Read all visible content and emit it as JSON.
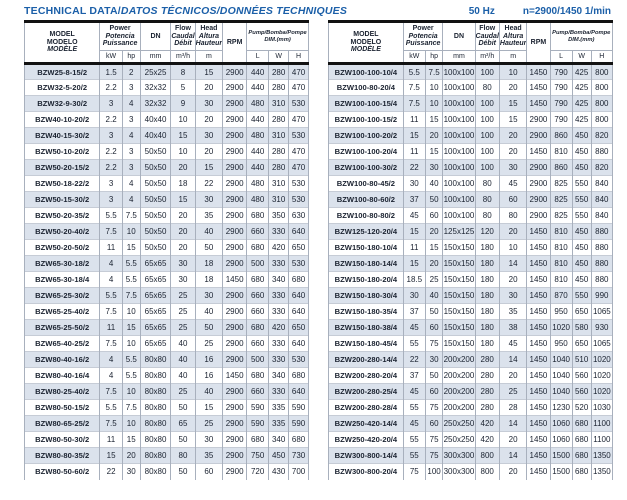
{
  "title": {
    "main": "TECHNICAL DATA/",
    "sub": "DATOS TÉCNICOS/DONNÉES TECHNIQUES",
    "frequency": "50 Hz",
    "speed": "n=2900/1450 1/min"
  },
  "colors": {
    "accent_blue": "#1b5fa8",
    "row_alt": "#dbe2ec",
    "heavy_rule": "#121212",
    "grid_line": "#a8b0bd"
  },
  "header": {
    "model": [
      "MODEL",
      "MODELO",
      "MODÈLE"
    ],
    "power": [
      "Power",
      "Potencia",
      "Puissance"
    ],
    "dn": "DN",
    "flow": [
      "Flow",
      "Caudal",
      "Débit"
    ],
    "head": [
      "Head",
      "Altura",
      "Hauteur"
    ],
    "rpm": "RPM",
    "dim": [
      "Pump/Bomba/Pompe",
      "DIM.(mm)"
    ],
    "units": {
      "kw": "kW",
      "hp": "hp",
      "mm": "mm",
      "m3h": "m³/h",
      "m": "m",
      "l": "L",
      "w": "W",
      "h": "H"
    }
  },
  "tables": [
    {
      "rows": [
        [
          "BZW25-8-15/2",
          "1.5",
          "2",
          "25x25",
          "8",
          "15",
          "2900",
          "440",
          "280",
          "470"
        ],
        [
          "BZW32-5-20/2",
          "2.2",
          "3",
          "32x32",
          "5",
          "20",
          "2900",
          "440",
          "280",
          "470"
        ],
        [
          "BZW32-9-30/2",
          "3",
          "4",
          "32x32",
          "9",
          "30",
          "2900",
          "480",
          "310",
          "530"
        ],
        [
          "BZW40-10-20/2",
          "2.2",
          "3",
          "40x40",
          "10",
          "20",
          "2900",
          "440",
          "280",
          "470"
        ],
        [
          "BZW40-15-30/2",
          "3",
          "4",
          "40x40",
          "15",
          "30",
          "2900",
          "480",
          "310",
          "530"
        ],
        [
          "BZW50-10-20/2",
          "2.2",
          "3",
          "50x50",
          "10",
          "20",
          "2900",
          "440",
          "280",
          "470"
        ],
        [
          "BZW50-20-15/2",
          "2.2",
          "3",
          "50x50",
          "20",
          "15",
          "2900",
          "440",
          "280",
          "470"
        ],
        [
          "BZW50-18-22/2",
          "3",
          "4",
          "50x50",
          "18",
          "22",
          "2900",
          "480",
          "310",
          "530"
        ],
        [
          "BZW50-15-30/2",
          "3",
          "4",
          "50x50",
          "15",
          "30",
          "2900",
          "480",
          "310",
          "530"
        ],
        [
          "BZW50-20-35/2",
          "5.5",
          "7.5",
          "50x50",
          "20",
          "35",
          "2900",
          "680",
          "350",
          "630"
        ],
        [
          "BZW50-20-40/2",
          "7.5",
          "10",
          "50x50",
          "20",
          "40",
          "2900",
          "660",
          "330",
          "640"
        ],
        [
          "BZW50-20-50/2",
          "11",
          "15",
          "50x50",
          "20",
          "50",
          "2900",
          "680",
          "420",
          "650"
        ],
        [
          "BZW65-30-18/2",
          "4",
          "5.5",
          "65x65",
          "30",
          "18",
          "2900",
          "500",
          "330",
          "530"
        ],
        [
          "BZW65-30-18/4",
          "4",
          "5.5",
          "65x65",
          "30",
          "18",
          "1450",
          "680",
          "340",
          "680"
        ],
        [
          "BZW65-25-30/2",
          "5.5",
          "7.5",
          "65x65",
          "25",
          "30",
          "2900",
          "660",
          "330",
          "640"
        ],
        [
          "BZW65-25-40/2",
          "7.5",
          "10",
          "65x65",
          "25",
          "40",
          "2900",
          "660",
          "330",
          "640"
        ],
        [
          "BZW65-25-50/2",
          "11",
          "15",
          "65x65",
          "25",
          "50",
          "2900",
          "680",
          "420",
          "650"
        ],
        [
          "BZW65-40-25/2",
          "7.5",
          "10",
          "65x65",
          "40",
          "25",
          "2900",
          "660",
          "330",
          "640"
        ],
        [
          "BZW80-40-16/2",
          "4",
          "5.5",
          "80x80",
          "40",
          "16",
          "2900",
          "500",
          "330",
          "530"
        ],
        [
          "BZW80-40-16/4",
          "4",
          "5.5",
          "80x80",
          "40",
          "16",
          "1450",
          "680",
          "340",
          "680"
        ],
        [
          "BZW80-25-40/2",
          "7.5",
          "10",
          "80x80",
          "25",
          "40",
          "2900",
          "660",
          "330",
          "640"
        ],
        [
          "BZW80-50-15/2",
          "5.5",
          "7.5",
          "80x80",
          "50",
          "15",
          "2900",
          "590",
          "335",
          "590"
        ],
        [
          "BZW80-65-25/2",
          "7.5",
          "10",
          "80x80",
          "65",
          "25",
          "2900",
          "590",
          "335",
          "590"
        ],
        [
          "BZW80-50-30/2",
          "11",
          "15",
          "80x80",
          "50",
          "30",
          "2900",
          "680",
          "340",
          "680"
        ],
        [
          "BZW80-80-35/2",
          "15",
          "20",
          "80x80",
          "80",
          "35",
          "2900",
          "750",
          "450",
          "730"
        ],
        [
          "BZW80-50-60/2",
          "22",
          "30",
          "80x80",
          "50",
          "60",
          "2900",
          "720",
          "430",
          "700"
        ]
      ]
    },
    {
      "rows": [
        [
          "BZW100-100-10/4",
          "5.5",
          "7.5",
          "100x100",
          "100",
          "10",
          "1450",
          "790",
          "425",
          "800"
        ],
        [
          "BZW100-80-20/4",
          "7.5",
          "10",
          "100x100",
          "80",
          "20",
          "1450",
          "790",
          "425",
          "800"
        ],
        [
          "BZW100-100-15/4",
          "7.5",
          "10",
          "100x100",
          "100",
          "15",
          "1450",
          "790",
          "425",
          "800"
        ],
        [
          "BZW100-100-15/2",
          "11",
          "15",
          "100x100",
          "100",
          "15",
          "2900",
          "790",
          "425",
          "800"
        ],
        [
          "BZW100-100-20/2",
          "15",
          "20",
          "100x100",
          "100",
          "20",
          "2900",
          "860",
          "450",
          "820"
        ],
        [
          "BZW100-100-20/4",
          "11",
          "15",
          "100x100",
          "100",
          "20",
          "1450",
          "810",
          "450",
          "880"
        ],
        [
          "BZW100-100-30/2",
          "22",
          "30",
          "100x100",
          "100",
          "30",
          "2900",
          "860",
          "450",
          "820"
        ],
        [
          "BZW100-80-45/2",
          "30",
          "40",
          "100x100",
          "80",
          "45",
          "2900",
          "825",
          "550",
          "840"
        ],
        [
          "BZW100-80-60/2",
          "37",
          "50",
          "100x100",
          "80",
          "60",
          "2900",
          "825",
          "550",
          "840"
        ],
        [
          "BZW100-80-80/2",
          "45",
          "60",
          "100x100",
          "80",
          "80",
          "2900",
          "825",
          "550",
          "840"
        ],
        [
          "BZW125-120-20/4",
          "15",
          "20",
          "125x125",
          "120",
          "20",
          "1450",
          "810",
          "450",
          "880"
        ],
        [
          "BZW150-180-10/4",
          "11",
          "15",
          "150x150",
          "180",
          "10",
          "1450",
          "810",
          "450",
          "880"
        ],
        [
          "BZW150-180-14/4",
          "15",
          "20",
          "150x150",
          "180",
          "14",
          "1450",
          "810",
          "450",
          "880"
        ],
        [
          "BZW150-180-20/4",
          "18.5",
          "25",
          "150x150",
          "180",
          "20",
          "1450",
          "810",
          "450",
          "880"
        ],
        [
          "BZW150-180-30/4",
          "30",
          "40",
          "150x150",
          "180",
          "30",
          "1450",
          "870",
          "550",
          "990"
        ],
        [
          "BZW150-180-35/4",
          "37",
          "50",
          "150x150",
          "180",
          "35",
          "1450",
          "950",
          "650",
          "1065"
        ],
        [
          "BZW150-180-38/4",
          "45",
          "60",
          "150x150",
          "180",
          "38",
          "1450",
          "1020",
          "580",
          "930"
        ],
        [
          "BZW150-180-45/4",
          "55",
          "75",
          "150x150",
          "180",
          "45",
          "1450",
          "950",
          "650",
          "1065"
        ],
        [
          "BZW200-280-14/4",
          "22",
          "30",
          "200x200",
          "280",
          "14",
          "1450",
          "1040",
          "510",
          "1020"
        ],
        [
          "BZW200-280-20/4",
          "37",
          "50",
          "200x200",
          "280",
          "20",
          "1450",
          "1040",
          "560",
          "1020"
        ],
        [
          "BZW200-280-25/4",
          "45",
          "60",
          "200x200",
          "280",
          "25",
          "1450",
          "1040",
          "560",
          "1020"
        ],
        [
          "BZW200-280-28/4",
          "55",
          "75",
          "200x200",
          "280",
          "28",
          "1450",
          "1230",
          "520",
          "1030"
        ],
        [
          "BZW250-420-14/4",
          "45",
          "60",
          "250x250",
          "420",
          "14",
          "1450",
          "1060",
          "680",
          "1100"
        ],
        [
          "BZW250-420-20/4",
          "55",
          "75",
          "250x250",
          "420",
          "20",
          "1450",
          "1060",
          "680",
          "1100"
        ],
        [
          "BZW300-800-14/4",
          "55",
          "75",
          "300x300",
          "800",
          "14",
          "1450",
          "1500",
          "680",
          "1350"
        ],
        [
          "BZW300-800-20/4",
          "75",
          "100",
          "300x300",
          "800",
          "20",
          "1450",
          "1500",
          "680",
          "1350"
        ]
      ]
    }
  ]
}
